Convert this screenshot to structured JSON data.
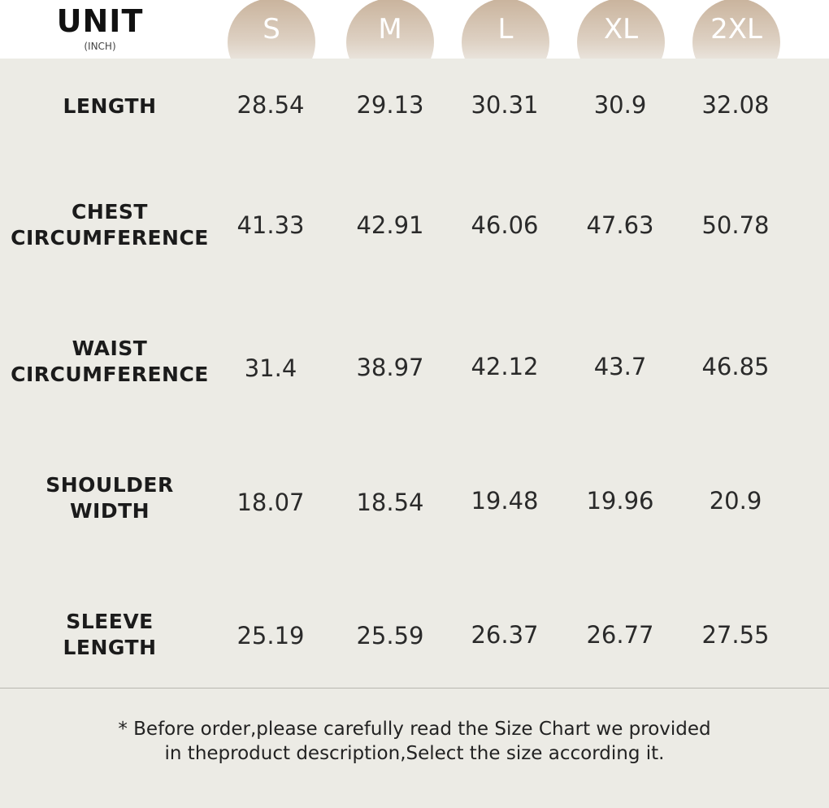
{
  "header": {
    "unit_title": "UNIT",
    "unit_subtitle": "(INCH)",
    "sizes": [
      "S",
      "M",
      "L",
      "XL",
      "2XL"
    ],
    "circle_colors": {
      "top": "#c9b39c",
      "bottom": "#eceae4"
    }
  },
  "rows": [
    {
      "label_lines": [
        "LENGTH"
      ],
      "values": [
        "28.54",
        "29.13",
        "30.31",
        "30.9",
        "32.08"
      ]
    },
    {
      "label_lines": [
        "CHEST",
        "CIRCUMFERENCE"
      ],
      "values": [
        "41.33",
        "42.91",
        "46.06",
        "47.63",
        "50.78"
      ]
    },
    {
      "label_lines": [
        "WAIST",
        "CIRCUMFERENCE"
      ],
      "values": [
        "31.4",
        "38.97",
        "42.12",
        "43.7",
        "46.85"
      ]
    },
    {
      "label_lines": [
        "SHOULDER",
        "WIDTH"
      ],
      "values": [
        "18.07",
        "18.54",
        "19.48",
        "19.96",
        "20.9"
      ]
    },
    {
      "label_lines": [
        "SLEEVE",
        "LENGTH"
      ],
      "values": [
        "25.19",
        "25.59",
        "26.37",
        "26.77",
        "27.55"
      ]
    }
  ],
  "footer": {
    "note_lines": [
      "* Before order,please carefully read the Size Chart we provided",
      "in theproduct description,Select the size according it."
    ]
  },
  "colors": {
    "table_background": "#ecebe5",
    "header_background": "#ffffff"
  }
}
